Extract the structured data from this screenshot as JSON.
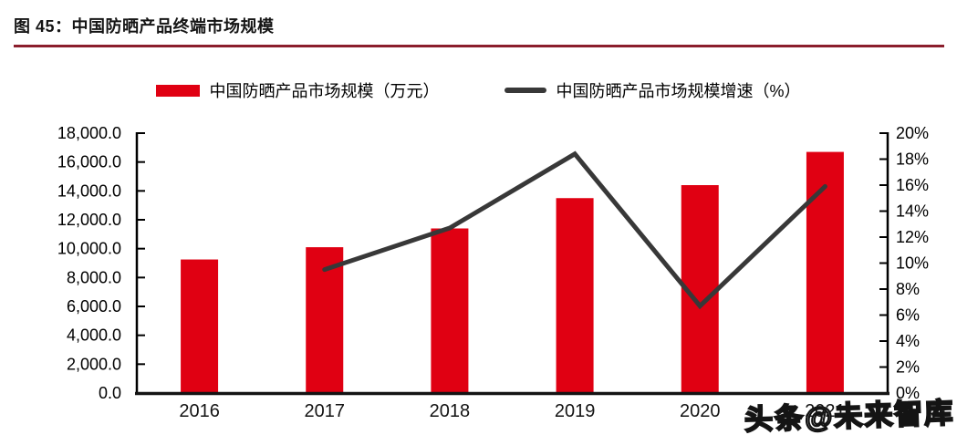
{
  "figure": {
    "title": "图 45：中国防晒产品终端市场规模",
    "underline_color": "#8B1E2C"
  },
  "legend": {
    "bar": {
      "label": "中国防晒产品市场规模（万元）",
      "color": "#E00012"
    },
    "line": {
      "label": "中国防晒产品市场规模增速（%）",
      "color": "#383838"
    }
  },
  "watermark": "头条@未来智库",
  "chart_data": {
    "type": "bar+line",
    "title": "图 45：中国防晒产品终端市场规模",
    "categories": [
      "2016",
      "2017",
      "2018",
      "2019",
      "2020",
      "2021"
    ],
    "series": [
      {
        "name": "中国防晒产品市场规模（万元）",
        "type": "bar",
        "axis": "left",
        "color": "#E00012",
        "values": [
          9250,
          10100,
          11400,
          13500,
          14400,
          16700
        ]
      },
      {
        "name": "中国防晒产品市场规模增速（%）",
        "type": "line",
        "axis": "right",
        "color": "#383838",
        "values": [
          null,
          9.5,
          12.7,
          18.4,
          6.7,
          15.9
        ]
      }
    ],
    "left_axis": {
      "min": 0,
      "max": 18000,
      "step": 2000,
      "tick_format": "#,##0.0"
    },
    "right_axis": {
      "min": 0,
      "max": 20,
      "step": 2,
      "tick_format": "0%"
    },
    "grid": false,
    "legend_position": "top-center"
  }
}
